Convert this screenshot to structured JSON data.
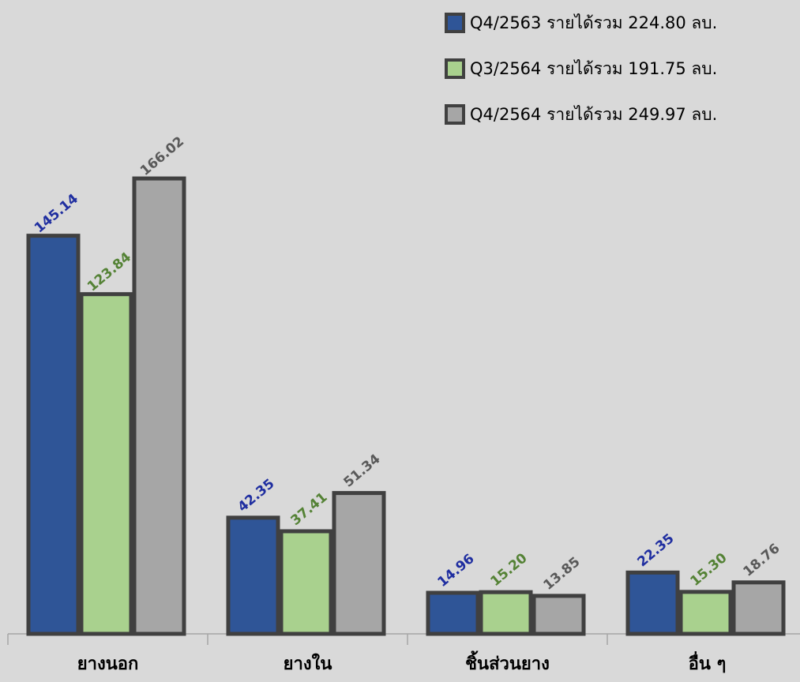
{
  "chart_data": {
    "type": "bar",
    "title": "",
    "xlabel": "",
    "ylabel": "",
    "ylim": [
      0,
      175
    ],
    "grid": false,
    "legend_position": "top-right",
    "categories": [
      "ยางนอก",
      "ยางใน",
      "ชิ้นส่วนยาง",
      "อื่น ๆ"
    ],
    "series": [
      {
        "name": "Q4/2563 รายได้รวม 224.80 ลบ.",
        "color": "#2f5597",
        "label_color": "#1f2ea0",
        "values": [
          145.14,
          42.35,
          14.96,
          22.35
        ],
        "labels": [
          "145.14",
          "42.35",
          "14.96",
          "22.35"
        ]
      },
      {
        "name": "Q3/2564 รายได้รวม 191.75 ลบ.",
        "color": "#a9d18e",
        "label_color": "#548235",
        "values": [
          123.84,
          37.41,
          15.2,
          15.3
        ],
        "labels": [
          "123.84",
          "37.41",
          "15.20",
          "15.30"
        ]
      },
      {
        "name": "Q4/2564 รายได้รวม 249.97 ลบ.",
        "color": "#a6a6a6",
        "label_color": "#595959",
        "values": [
          166.02,
          51.34,
          13.85,
          18.76
        ],
        "labels": [
          "166.02",
          "51.34",
          "13.85",
          "18.76"
        ]
      }
    ]
  }
}
